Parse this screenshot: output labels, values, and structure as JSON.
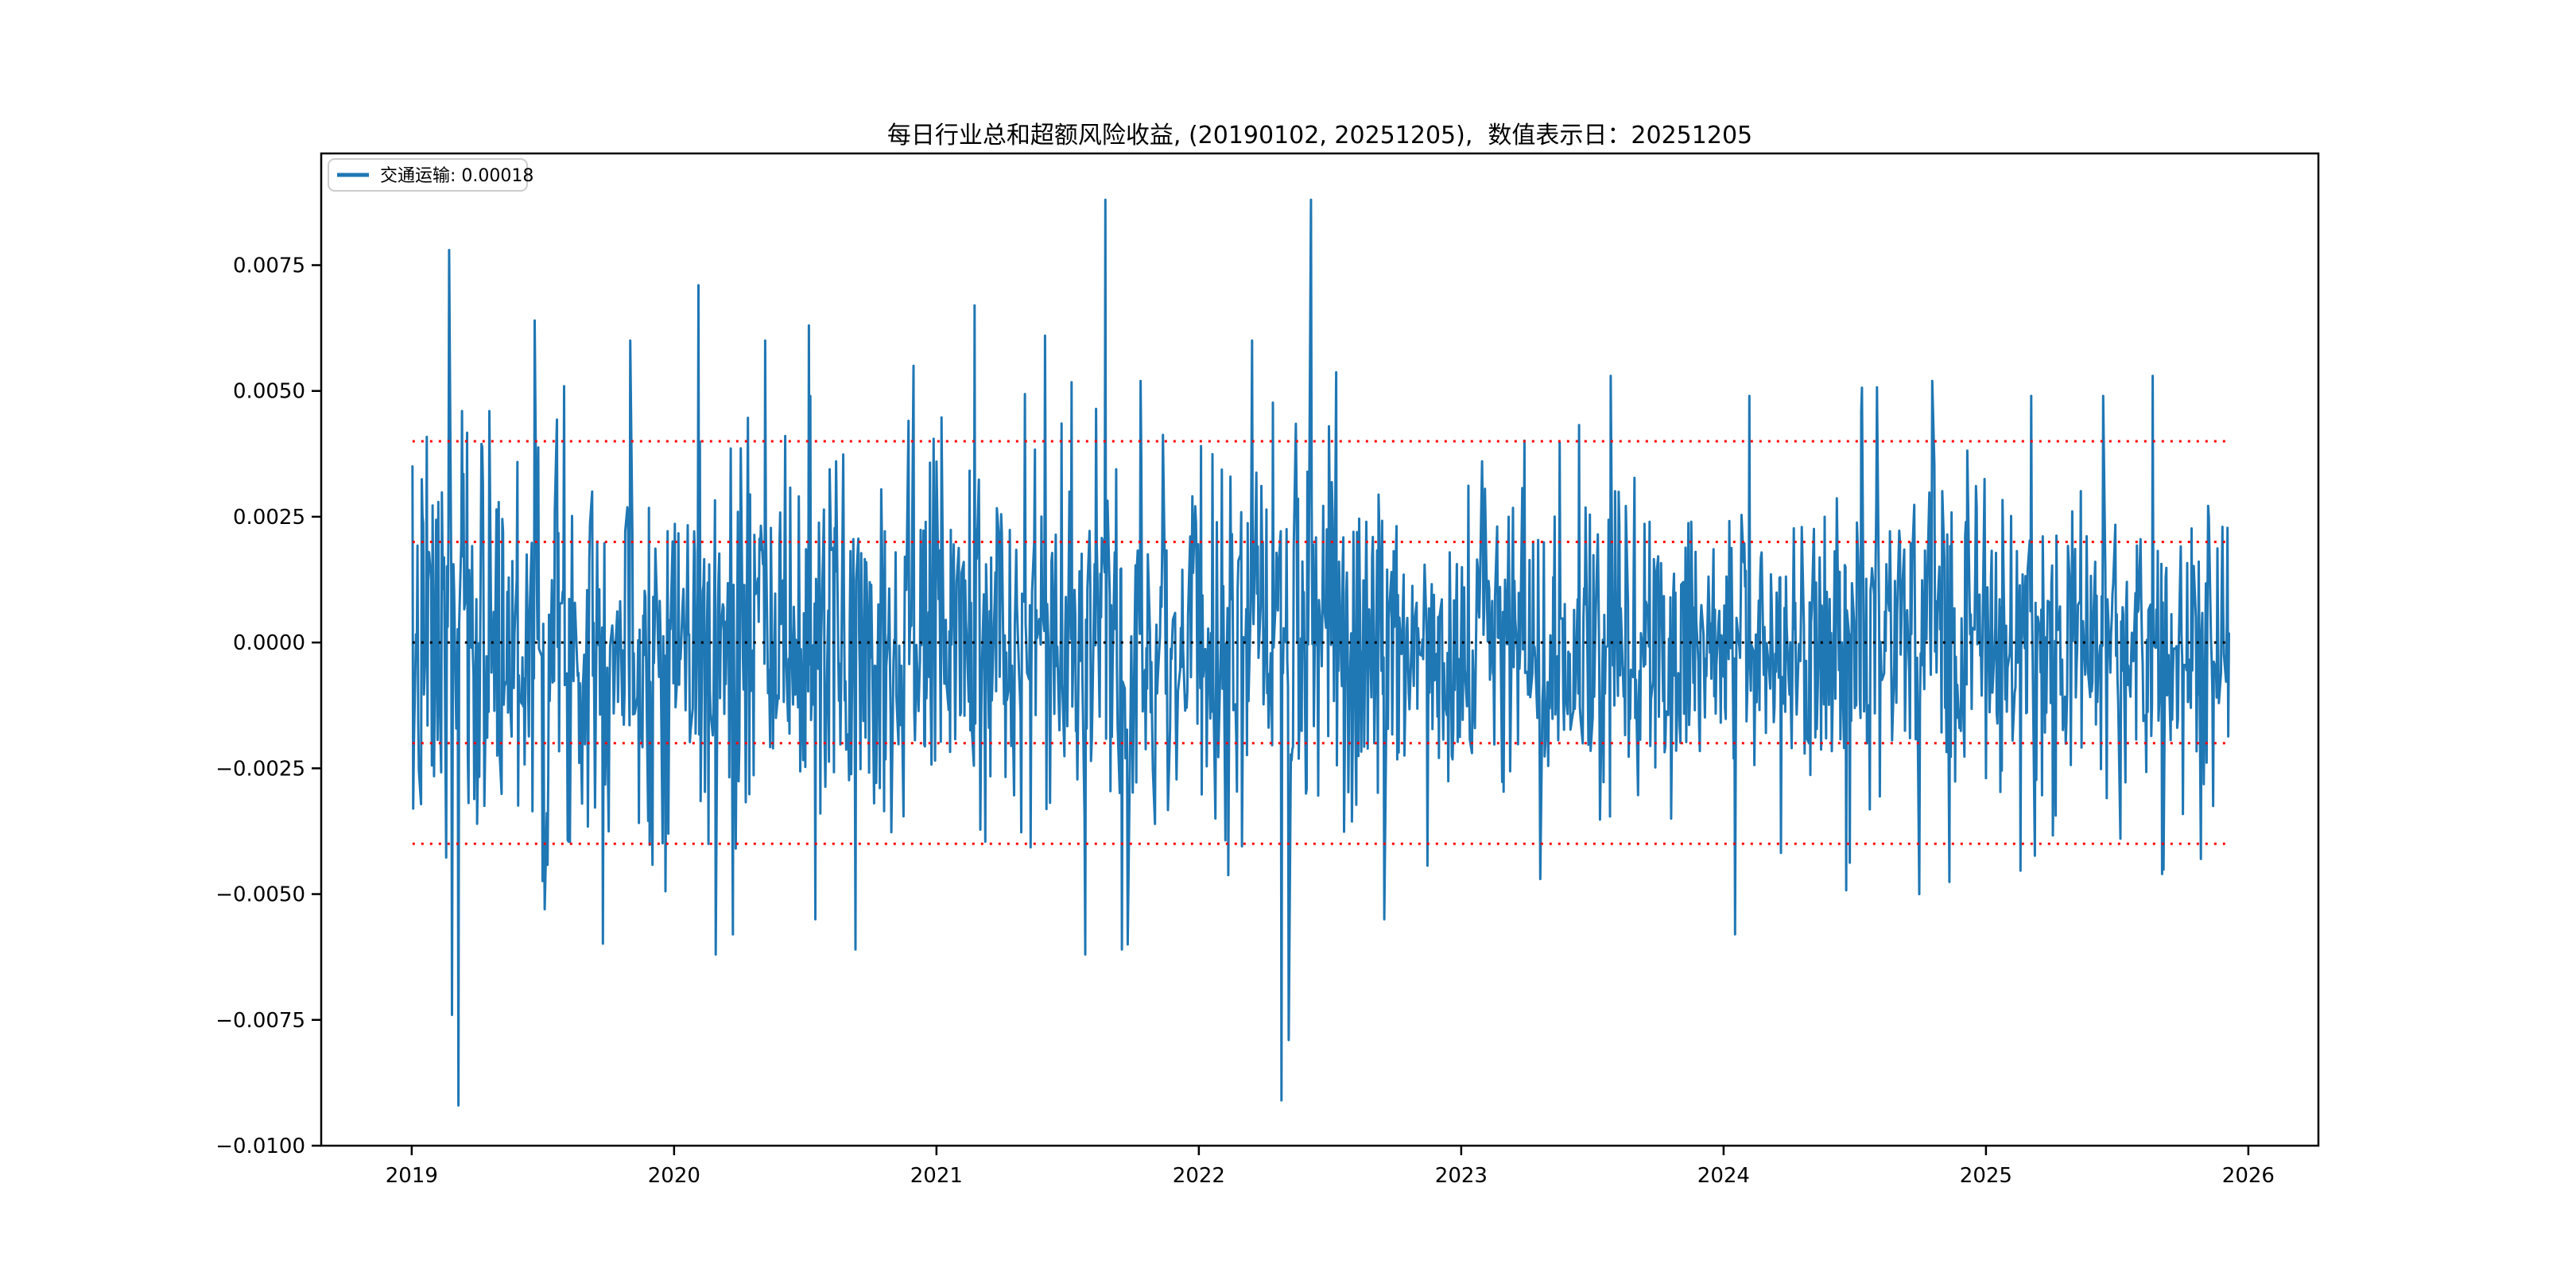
{
  "legend": {
    "label": "交通运输: 0.00018",
    "position": "upper left"
  },
  "chart_data": {
    "type": "line",
    "title": "每日行业总和超额风险收益, (20190102, 20251205),  数值表示日：20251205",
    "xlabel": "",
    "ylabel": "",
    "grid": false,
    "date_range": [
      "20190102",
      "20251205"
    ],
    "value_display_date": "20251205",
    "series": [
      {
        "name": "交通运输",
        "color": "#1f77b4",
        "last_value": 0.00018,
        "frequency": "daily-weekdays"
      }
    ],
    "xticks": [
      {
        "label": "2019",
        "year": 2019
      },
      {
        "label": "2020",
        "year": 2020
      },
      {
        "label": "2021",
        "year": 2021
      },
      {
        "label": "2022",
        "year": 2022
      },
      {
        "label": "2023",
        "year": 2023
      },
      {
        "label": "2024",
        "year": 2024
      },
      {
        "label": "2025",
        "year": 2025
      },
      {
        "label": "2026",
        "year": 2026
      }
    ],
    "yticks": [
      {
        "label": "0.0075",
        "value": 0.0075
      },
      {
        "label": "0.0050",
        "value": 0.005
      },
      {
        "label": "0.0025",
        "value": 0.0025
      },
      {
        "label": "0.0000",
        "value": 0.0
      },
      {
        "label": "−0.0025",
        "value": -0.0025
      },
      {
        "label": "−0.0050",
        "value": -0.005
      },
      {
        "label": "−0.0075",
        "value": -0.0075
      },
      {
        "label": "−0.0100",
        "value": -0.01
      }
    ],
    "ylim": [
      -0.01,
      0.00972
    ],
    "xlim_years": [
      2018.655,
      2026.267
    ],
    "reference_lines": [
      {
        "value": 0.004,
        "color": "#ff0000",
        "style": "dotted"
      },
      {
        "value": 0.002,
        "color": "#ff0000",
        "style": "dotted"
      },
      {
        "value": 0.0,
        "color": "#000000",
        "style": "dotted"
      },
      {
        "value": -0.002,
        "color": "#ff0000",
        "style": "dotted"
      },
      {
        "value": -0.004,
        "color": "#ff0000",
        "style": "dotted"
      }
    ],
    "key_points": [
      {
        "date": "2019-01-02",
        "value": 0.0035
      },
      {
        "date": "2019-01-03",
        "value": -0.0033
      },
      {
        "date": "2019-02-22",
        "value": 0.0078
      },
      {
        "date": "2019-02-26",
        "value": -0.0074
      },
      {
        "date": "2019-03-07",
        "value": -0.0092
      },
      {
        "date": "2019-03-12",
        "value": 0.0046
      },
      {
        "date": "2019-04-19",
        "value": 0.0046
      },
      {
        "date": "2019-06-21",
        "value": 0.0064
      },
      {
        "date": "2019-07-05",
        "value": -0.0053
      },
      {
        "date": "2019-09-09",
        "value": 0.003
      },
      {
        "date": "2020-02-04",
        "value": 0.0071
      },
      {
        "date": "2020-02-28",
        "value": -0.0062
      },
      {
        "date": "2020-03-23",
        "value": -0.0058
      },
      {
        "date": "2020-07-07",
        "value": 0.0063
      },
      {
        "date": "2020-07-16",
        "value": -0.0055
      },
      {
        "date": "2020-09-10",
        "value": -0.0061
      },
      {
        "date": "2020-11-30",
        "value": 0.0055
      },
      {
        "date": "2021-02-23",
        "value": 0.0067
      },
      {
        "date": "2021-06-01",
        "value": 0.0061
      },
      {
        "date": "2021-07-27",
        "value": -0.0062
      },
      {
        "date": "2021-08-24",
        "value": 0.0088
      },
      {
        "date": "2021-09-16",
        "value": -0.0061
      },
      {
        "date": "2021-10-12",
        "value": 0.0052
      },
      {
        "date": "2022-03-16",
        "value": 0.006
      },
      {
        "date": "2022-04-26",
        "value": -0.0091
      },
      {
        "date": "2022-05-06",
        "value": -0.0079
      },
      {
        "date": "2022-06-06",
        "value": 0.0088
      },
      {
        "date": "2022-09-16",
        "value": -0.0055
      },
      {
        "date": "2023-01-30",
        "value": 0.0036
      },
      {
        "date": "2023-04-21",
        "value": -0.0047
      },
      {
        "date": "2023-07-28",
        "value": 0.0053
      },
      {
        "date": "2023-10-20",
        "value": -0.0035
      },
      {
        "date": "2024-01-17",
        "value": -0.0058
      },
      {
        "date": "2024-02-06",
        "value": 0.0049
      },
      {
        "date": "2024-07-11",
        "value": 0.0046
      },
      {
        "date": "2024-09-30",
        "value": -0.005
      },
      {
        "date": "2024-10-18",
        "value": 0.0052
      },
      {
        "date": "2025-03-05",
        "value": 0.0049
      },
      {
        "date": "2025-06-13",
        "value": 0.0049
      },
      {
        "date": "2025-08-21",
        "value": 0.0053
      },
      {
        "date": "2025-09-03",
        "value": -0.0046
      },
      {
        "date": "2025-12-05",
        "value": 0.00018
      }
    ],
    "volatility_eras": [
      {
        "until": 2019.6,
        "sigma": 0.0021
      },
      {
        "until": 2020.7,
        "sigma": 0.0019
      },
      {
        "until": 2022.7,
        "sigma": 0.0018
      },
      {
        "until": 2024.0,
        "sigma": 0.0014
      },
      {
        "until": 2026.3,
        "sigma": 0.0015
      }
    ],
    "noise_seed": 7
  }
}
